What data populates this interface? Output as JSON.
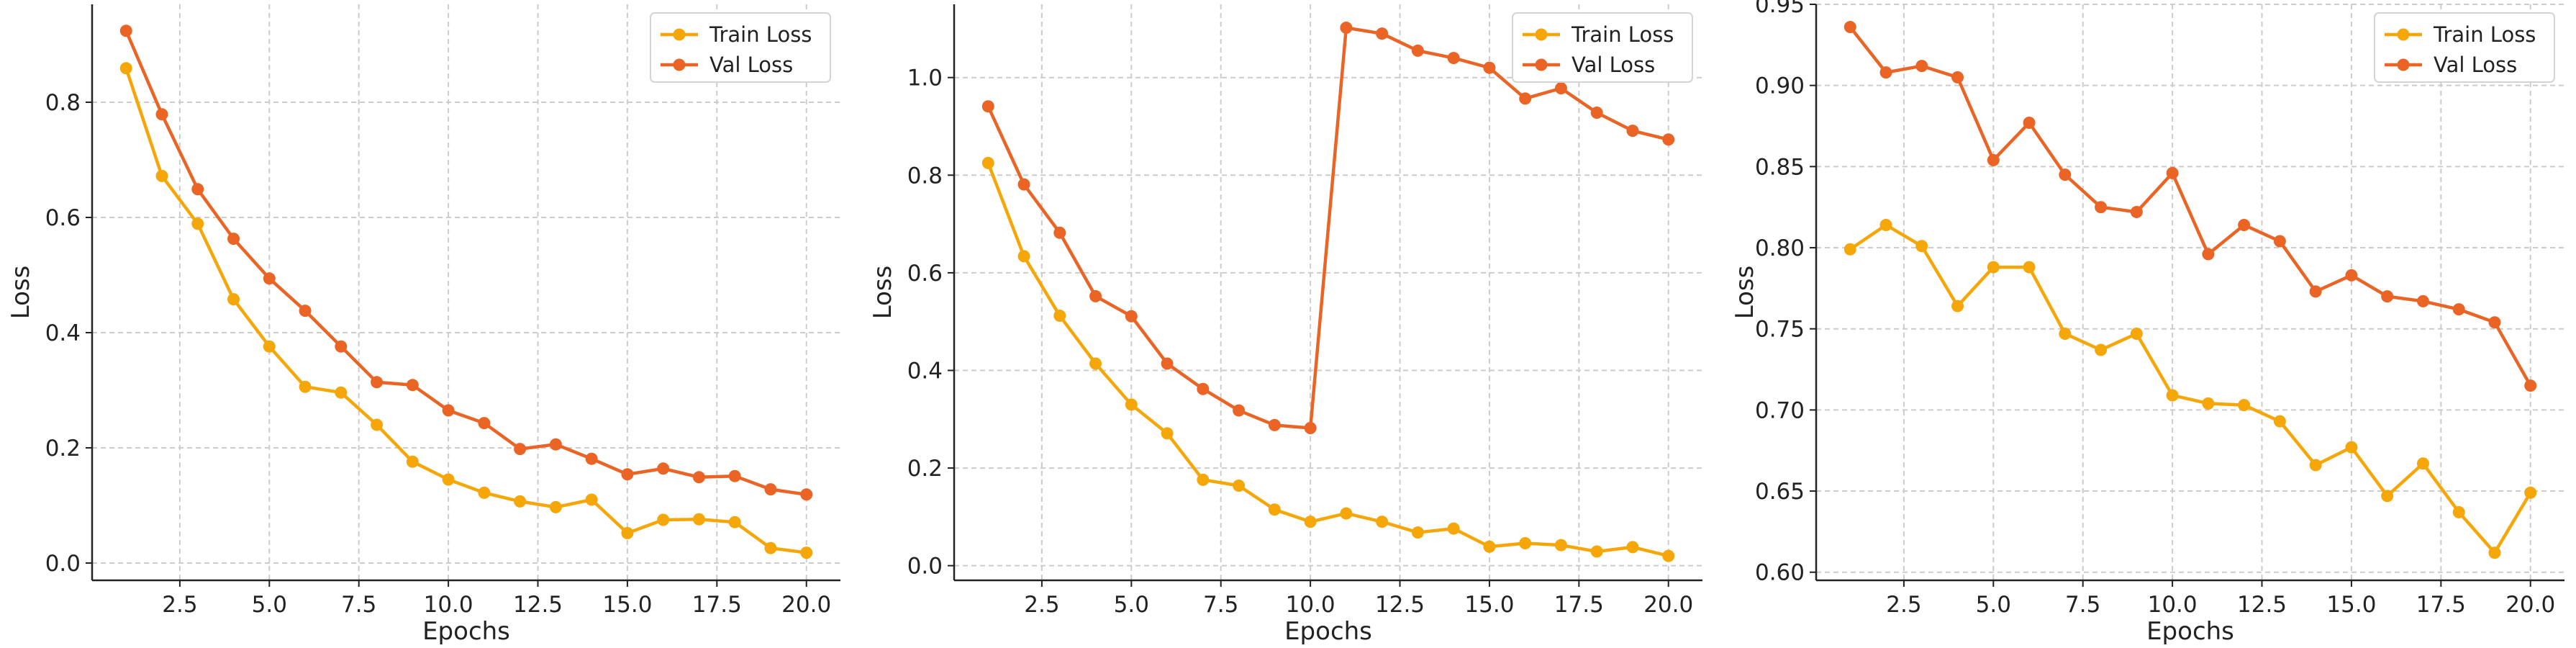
{
  "colors": {
    "train": "#F5A70A",
    "val": "#EA6425"
  },
  "chart_data": [
    {
      "type": "line",
      "xlabel": "Epochs",
      "ylabel": "Loss",
      "xlim": [
        0.05,
        20.95
      ],
      "ylim": [
        -0.03,
        0.97
      ],
      "xticks": [
        2.5,
        5.0,
        7.5,
        10.0,
        12.5,
        15.0,
        17.5,
        20.0
      ],
      "yticks": [
        0.0,
        0.2,
        0.4,
        0.6,
        0.8
      ],
      "xtick_labels": [
        "2.5",
        "5.0",
        "7.5",
        "10.0",
        "12.5",
        "15.0",
        "17.5",
        "20.0"
      ],
      "ytick_labels": [
        "0.0",
        "0.2",
        "0.4",
        "0.6",
        "0.8"
      ],
      "grid": true,
      "legend": "top-right",
      "x": [
        1,
        2,
        3,
        4,
        5,
        6,
        7,
        8,
        9,
        10,
        11,
        12,
        13,
        14,
        15,
        16,
        17,
        18,
        19,
        20
      ],
      "series": [
        {
          "name": "Train Loss",
          "values": [
            0.859,
            0.672,
            0.589,
            0.458,
            0.376,
            0.306,
            0.296,
            0.24,
            0.176,
            0.145,
            0.122,
            0.107,
            0.097,
            0.11,
            0.052,
            0.075,
            0.076,
            0.071,
            0.026,
            0.018
          ]
        },
        {
          "name": "Val Loss",
          "values": [
            0.924,
            0.779,
            0.649,
            0.563,
            0.494,
            0.438,
            0.376,
            0.314,
            0.309,
            0.265,
            0.243,
            0.198,
            0.206,
            0.181,
            0.154,
            0.164,
            0.149,
            0.151,
            0.128,
            0.119
          ]
        }
      ]
    },
    {
      "type": "line",
      "xlabel": "Epochs",
      "ylabel": "Loss",
      "xlim": [
        0.05,
        20.95
      ],
      "ylim": [
        -0.03,
        1.15
      ],
      "xticks": [
        2.5,
        5.0,
        7.5,
        10.0,
        12.5,
        15.0,
        17.5,
        20.0
      ],
      "yticks": [
        0.0,
        0.2,
        0.4,
        0.6,
        0.8,
        1.0
      ],
      "xtick_labels": [
        "2.5",
        "5.0",
        "7.5",
        "10.0",
        "12.5",
        "15.0",
        "17.5",
        "20.0"
      ],
      "ytick_labels": [
        "0.0",
        "0.2",
        "0.4",
        "0.6",
        "0.8",
        "1.0"
      ],
      "grid": true,
      "legend": "top-right",
      "x": [
        1,
        2,
        3,
        4,
        5,
        6,
        7,
        8,
        9,
        10,
        11,
        12,
        13,
        14,
        15,
        16,
        17,
        18,
        19,
        20
      ],
      "series": [
        {
          "name": "Train Loss",
          "values": [
            0.825,
            0.634,
            0.512,
            0.414,
            0.33,
            0.271,
            0.176,
            0.164,
            0.115,
            0.09,
            0.107,
            0.09,
            0.068,
            0.076,
            0.039,
            0.046,
            0.042,
            0.029,
            0.038,
            0.02
          ]
        },
        {
          "name": "Val Loss",
          "values": [
            0.941,
            0.781,
            0.682,
            0.552,
            0.511,
            0.414,
            0.362,
            0.318,
            0.288,
            0.282,
            1.102,
            1.09,
            1.055,
            1.04,
            1.02,
            0.957,
            0.978,
            0.928,
            0.891,
            0.873
          ]
        }
      ]
    },
    {
      "type": "line",
      "xlabel": "Epochs",
      "ylabel": "Loss",
      "xlim": [
        0.05,
        20.95
      ],
      "ylim": [
        0.595,
        0.95
      ],
      "xticks": [
        2.5,
        5.0,
        7.5,
        10.0,
        12.5,
        15.0,
        17.5,
        20.0
      ],
      "yticks": [
        0.6,
        0.65,
        0.7,
        0.75,
        0.8,
        0.85,
        0.9,
        0.95
      ],
      "xtick_labels": [
        "2.5",
        "5.0",
        "7.5",
        "10.0",
        "12.5",
        "15.0",
        "17.5",
        "20.0"
      ],
      "ytick_labels": [
        "0.60",
        "0.65",
        "0.70",
        "0.75",
        "0.80",
        "0.85",
        "0.90",
        "0.95"
      ],
      "grid": true,
      "legend": "top-right",
      "x": [
        1,
        2,
        3,
        4,
        5,
        6,
        7,
        8,
        9,
        10,
        11,
        12,
        13,
        14,
        15,
        16,
        17,
        18,
        19,
        20
      ],
      "series": [
        {
          "name": "Train Loss",
          "values": [
            0.799,
            0.814,
            0.801,
            0.764,
            0.788,
            0.788,
            0.747,
            0.737,
            0.747,
            0.709,
            0.704,
            0.703,
            0.693,
            0.666,
            0.677,
            0.647,
            0.667,
            0.637,
            0.612,
            0.649
          ]
        },
        {
          "name": "Val Loss",
          "values": [
            0.936,
            0.908,
            0.912,
            0.905,
            0.854,
            0.877,
            0.845,
            0.825,
            0.822,
            0.846,
            0.796,
            0.814,
            0.804,
            0.773,
            0.783,
            0.77,
            0.767,
            0.762,
            0.754,
            0.715
          ]
        }
      ]
    }
  ]
}
